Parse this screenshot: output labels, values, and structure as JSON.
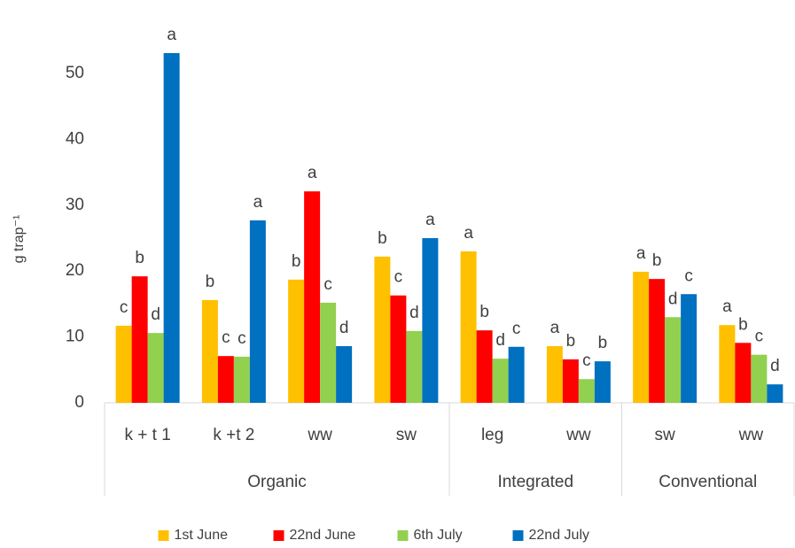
{
  "chart_data": {
    "type": "bar",
    "y_label": "g trap⁻¹",
    "categories": [
      "k + t 1",
      "k +t 2",
      "ww",
      "sw",
      "leg",
      "ww",
      "sw",
      "ww"
    ],
    "category_groups": [
      "Organic",
      "Organic",
      "Organic",
      "Organic",
      "Integrated",
      "Integrated",
      "Conventional",
      "Conventional"
    ],
    "series": [
      {
        "name": "1st June",
        "color": "#ffc000",
        "values": [
          11.7,
          15.6,
          18.7,
          22.2,
          23.0,
          8.6,
          19.9,
          11.8
        ],
        "annotations": [
          "c",
          "b",
          "b",
          "b",
          "a",
          "a",
          "a",
          "a"
        ]
      },
      {
        "name": "22nd June",
        "color": "#ff0000",
        "values": [
          19.2,
          7.1,
          32.1,
          16.3,
          11.0,
          6.6,
          18.8,
          9.1
        ],
        "annotations": [
          "b",
          "c",
          "a",
          "c",
          "b",
          "b",
          "b",
          "b"
        ]
      },
      {
        "name": "6th July",
        "color": "#92d050",
        "values": [
          10.6,
          7.0,
          15.2,
          10.9,
          6.7,
          3.6,
          13.0,
          7.3
        ],
        "annotations": [
          "d",
          "c",
          "c",
          "d",
          "d",
          "c",
          "d",
          "c"
        ]
      },
      {
        "name": "22nd July",
        "color": "#0070c0",
        "values": [
          53.1,
          27.7,
          8.6,
          25.0,
          8.5,
          6.3,
          16.5,
          2.8
        ],
        "annotations": [
          "a",
          "a",
          "d",
          "a",
          "c",
          "b",
          "c",
          "d"
        ]
      }
    ],
    "ylim": [
      0,
      55
    ],
    "yticks": [
      0,
      10,
      20,
      30,
      40,
      50
    ],
    "grid": false,
    "legend": "bottom"
  }
}
